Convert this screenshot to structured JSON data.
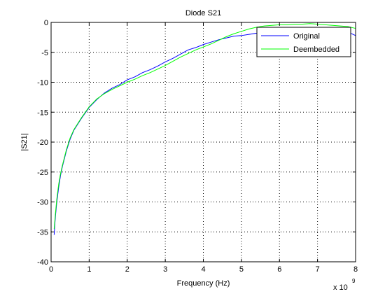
{
  "chart_data": {
    "type": "line",
    "title": "Diode S21",
    "xlabel": "Frequency (Hz)",
    "ylabel": "|S21|",
    "x_multiplier_base": "x 10",
    "x_multiplier_exp": "9",
    "xlim": [
      0,
      8
    ],
    "ylim": [
      -40,
      0
    ],
    "xticks": [
      0,
      1,
      2,
      3,
      4,
      5,
      6,
      7,
      8
    ],
    "yticks": [
      0,
      -5,
      -10,
      -15,
      -20,
      -25,
      -30,
      -35,
      -40
    ],
    "grid": true,
    "legend_position": "top-right",
    "series": [
      {
        "name": "Original",
        "color": "#0000ff",
        "x": [
          0.08,
          0.1,
          0.12,
          0.15,
          0.2,
          0.25,
          0.3,
          0.4,
          0.5,
          0.6,
          0.7,
          0.8,
          1.0,
          1.2,
          1.4,
          1.6,
          1.8,
          2.0,
          2.2,
          2.4,
          2.6,
          2.8,
          3.0,
          3.2,
          3.4,
          3.6,
          3.8,
          4.0,
          4.2,
          4.4,
          4.6,
          4.8,
          5.0,
          5.2,
          5.4,
          5.6,
          5.8,
          6.0,
          6.2,
          6.4,
          6.6,
          6.8,
          7.0,
          7.2,
          7.4,
          7.6,
          7.8,
          8.0
        ],
        "values": [
          -35.5,
          -33.5,
          -32,
          -30,
          -27.5,
          -25.5,
          -24,
          -21.5,
          -19.5,
          -18,
          -17,
          -16,
          -14.2,
          -12.9,
          -11.8,
          -11,
          -10.4,
          -9.6,
          -9.1,
          -8.4,
          -7.9,
          -7.3,
          -6.6,
          -6,
          -5.3,
          -4.6,
          -4.2,
          -3.7,
          -3.3,
          -2.9,
          -2.6,
          -2.3,
          -2.2,
          -2,
          -1.8,
          -1.4,
          -1.2,
          -1.1,
          -1.2,
          -1.1,
          -1.0,
          -0.9,
          -1.0,
          -1.1,
          -1.2,
          -1.4,
          -1.6,
          -2.2
        ]
      },
      {
        "name": "Deembedded",
        "color": "#00ff00",
        "x": [
          0.08,
          0.1,
          0.12,
          0.15,
          0.2,
          0.25,
          0.3,
          0.4,
          0.5,
          0.6,
          0.7,
          0.8,
          1.0,
          1.2,
          1.4,
          1.6,
          1.8,
          2.0,
          2.2,
          2.4,
          2.6,
          2.8,
          3.0,
          3.2,
          3.4,
          3.6,
          3.8,
          4.0,
          4.2,
          4.4,
          4.6,
          4.8,
          5.0,
          5.2,
          5.4,
          5.6,
          5.8,
          6.0,
          6.2,
          6.4,
          6.6,
          6.8,
          7.0,
          7.2,
          7.4,
          7.6,
          7.8,
          8.0
        ],
        "values": [
          -34.5,
          -33,
          -31.5,
          -29.5,
          -27,
          -25.2,
          -23.8,
          -21.3,
          -19.3,
          -17.9,
          -16.9,
          -15.9,
          -14.1,
          -12.8,
          -11.9,
          -11.2,
          -10.6,
          -10,
          -9.5,
          -8.9,
          -8.4,
          -7.8,
          -7.2,
          -6.5,
          -5.8,
          -5.2,
          -4.6,
          -4.1,
          -3.6,
          -3.0,
          -2.4,
          -1.9,
          -1.5,
          -1.1,
          -0.8,
          -0.6,
          -0.5,
          -0.4,
          -0.4,
          -0.3,
          -0.3,
          -0.2,
          -0.3,
          -0.4,
          -0.5,
          -0.6,
          -0.7,
          -1.0
        ]
      }
    ]
  }
}
